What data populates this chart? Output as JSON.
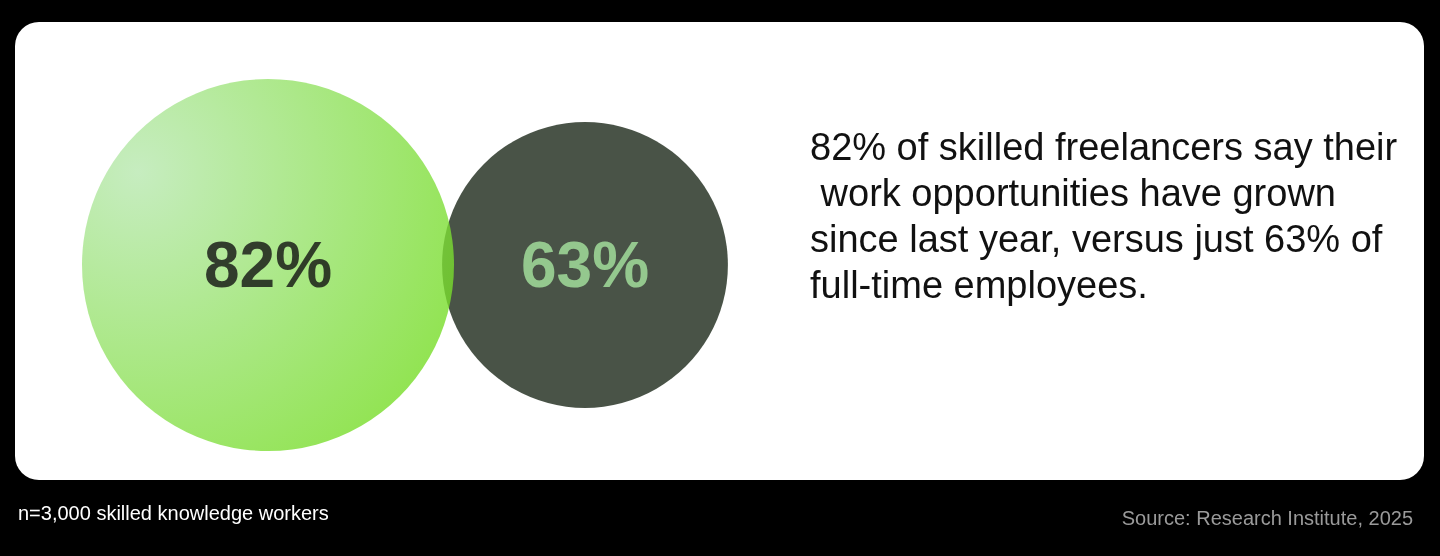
{
  "chart_data": {
    "type": "other",
    "subtitle": "82% of skilled freelancers say their work opportunities have grown since last year, versus just 63% of full-time employees.",
    "categories": [
      null,
      null
    ],
    "values": [
      82,
      63
    ],
    "value_labels": [
      "82%",
      "63%"
    ],
    "colors": [
      "#72dc1e",
      "#1b2819"
    ],
    "annotations": [
      "n=3,000 skilled knowledge workers",
      "Source: Research Institute, 2025"
    ]
  }
}
